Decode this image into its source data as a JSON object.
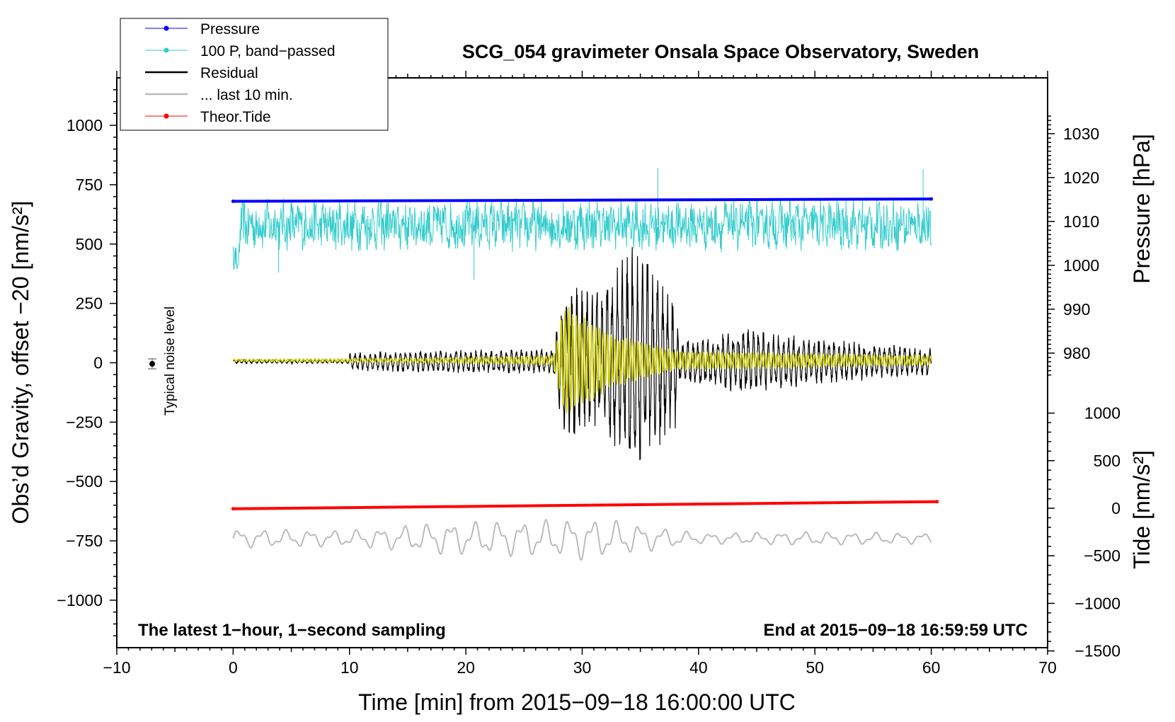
{
  "chart_data": {
    "type": "line",
    "title": "SCG_054 gravimeter Onsala Space Observatory, Sweden",
    "xlabel": "Time [min] from 2015−09−18 16:00:00 UTC",
    "ylabel_left": "Obs’d Gravity, offset  −20 [nm/s²]",
    "ylabel_right_top": "Pressure [hPa]",
    "ylabel_right_bottom": "Tide [nm/s²]",
    "xlim": [
      -10,
      70
    ],
    "ylim_left": [
      -1200,
      1200
    ],
    "x_ticks": [
      -10,
      0,
      10,
      20,
      30,
      40,
      50,
      60,
      70
    ],
    "x_tick_labels": [
      "−10",
      "0",
      "10",
      "20",
      "30",
      "40",
      "50",
      "60",
      "70"
    ],
    "y_ticks_left": [
      1000,
      750,
      500,
      250,
      0,
      -250,
      -500,
      -750,
      -1000
    ],
    "y_tick_labels_left": [
      "1000",
      "750",
      "500",
      "250",
      "0",
      "−250",
      "−500",
      "−750",
      "−1000"
    ],
    "pressure_axis": {
      "ticks": [
        1030,
        1020,
        1010,
        1000,
        990,
        980
      ],
      "tick_labels": [
        "1030",
        "1020",
        "1010",
        "1000",
        "990",
        "980"
      ]
    },
    "tide_axis": {
      "ticks": [
        1000,
        500,
        0,
        -500,
        -1000,
        -1500
      ],
      "tick_labels": [
        "1000",
        "500",
        "0",
        "−500",
        "−1000",
        "−1500"
      ]
    },
    "legend": [
      {
        "label": "Pressure",
        "color": "#0000ff",
        "marker": true
      },
      {
        "label": "100 P, band−passed",
        "color": "#33cccc",
        "marker": true
      },
      {
        "label": "Residual",
        "color": "#000000",
        "marker": false
      },
      {
        "label": "... last 10 min.",
        "color": "#bbbbbb",
        "marker": false
      },
      {
        "label": "Theor.Tide",
        "color": "#ff0000",
        "marker": true
      }
    ],
    "annotations": {
      "bottom_left": "The latest 1−hour, 1−second sampling",
      "bottom_right": "End at 2015−09−18 16:59:59 UTC",
      "noise": "Typical noise level"
    },
    "series": [
      {
        "name": "Pressure",
        "color": "#0000ff",
        "x_range": [
          0,
          60
        ],
        "y_start": 680,
        "y_end": 690,
        "unit": "nm/s² (plot units)"
      },
      {
        "name": "100 P, band−passed",
        "color": "#33cccc",
        "x_range": [
          0,
          60
        ],
        "center": 580,
        "amplitude": 90,
        "spikes": [
          {
            "x": 36.5,
            "y": 820
          },
          {
            "x": 59.3,
            "y": 815
          },
          {
            "x": 20.7,
            "y": 350
          },
          {
            "x": 3.9,
            "y": 380
          }
        ]
      },
      {
        "name": "Residual",
        "color": "#000000",
        "x_range": [
          0,
          60
        ],
        "envelope": [
          [
            0,
            8
          ],
          [
            9.9,
            8
          ],
          [
            10,
            40
          ],
          [
            18,
            50
          ],
          [
            27.5,
            55
          ],
          [
            28.5,
            330
          ],
          [
            30,
            340
          ],
          [
            32,
            320
          ],
          [
            33.5,
            450
          ],
          [
            34.3,
            520
          ],
          [
            36,
            400
          ],
          [
            38,
            300
          ],
          [
            38.4,
            90
          ],
          [
            44,
            140
          ],
          [
            50,
            100
          ],
          [
            60,
            60
          ]
        ]
      },
      {
        "name": "Residual (yellow)",
        "color": "#cccc00",
        "x_range": [
          0,
          60
        ],
        "envelope": [
          [
            0,
            5
          ],
          [
            17,
            10
          ],
          [
            27.5,
            20
          ],
          [
            28.5,
            240
          ],
          [
            30,
            200
          ],
          [
            33,
            110
          ],
          [
            36,
            70
          ],
          [
            38,
            40
          ],
          [
            60,
            20
          ]
        ]
      },
      {
        "name": "Theor.Tide",
        "color": "#ff0000",
        "x_range": [
          0,
          60.5
        ],
        "y_start": -615,
        "y_end": -585
      },
      {
        "name": "... last 10 min.",
        "color": "#bbbbbb",
        "x_range": [
          0,
          60
        ],
        "center": -740,
        "envelope": [
          [
            0,
            35
          ],
          [
            10,
            30
          ],
          [
            18,
            60
          ],
          [
            28,
            70
          ],
          [
            30,
            80
          ],
          [
            34,
            60
          ],
          [
            40,
            20
          ],
          [
            50,
            25
          ],
          [
            60,
            20
          ]
        ]
      }
    ]
  }
}
